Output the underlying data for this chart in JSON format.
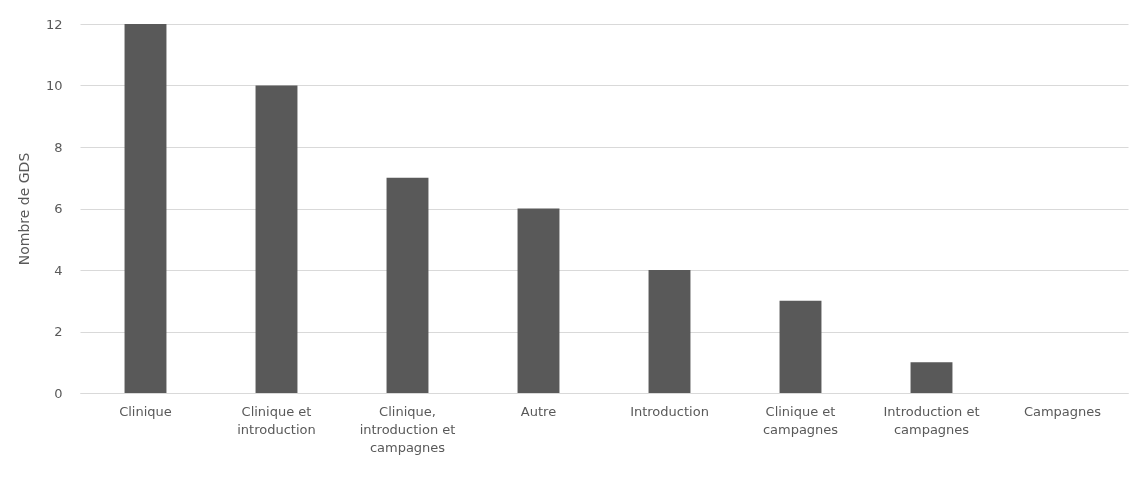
{
  "chart_data": {
    "type": "bar",
    "ylabel": "Nombre de GDS",
    "categories": [
      "Clinique",
      "Clinique et introduction",
      "Clinique, introduction et campagnes",
      "Autre",
      "Introduction",
      "Clinique et campagnes",
      "Introduction et campagnes",
      "Campagnes"
    ],
    "values": [
      12,
      10,
      7,
      6,
      4,
      3,
      1,
      0
    ],
    "color": "#595959",
    "ylim": [
      0,
      12
    ],
    "yticks": [
      0,
      2,
      4,
      6,
      8,
      10,
      12
    ],
    "grid": "y"
  }
}
